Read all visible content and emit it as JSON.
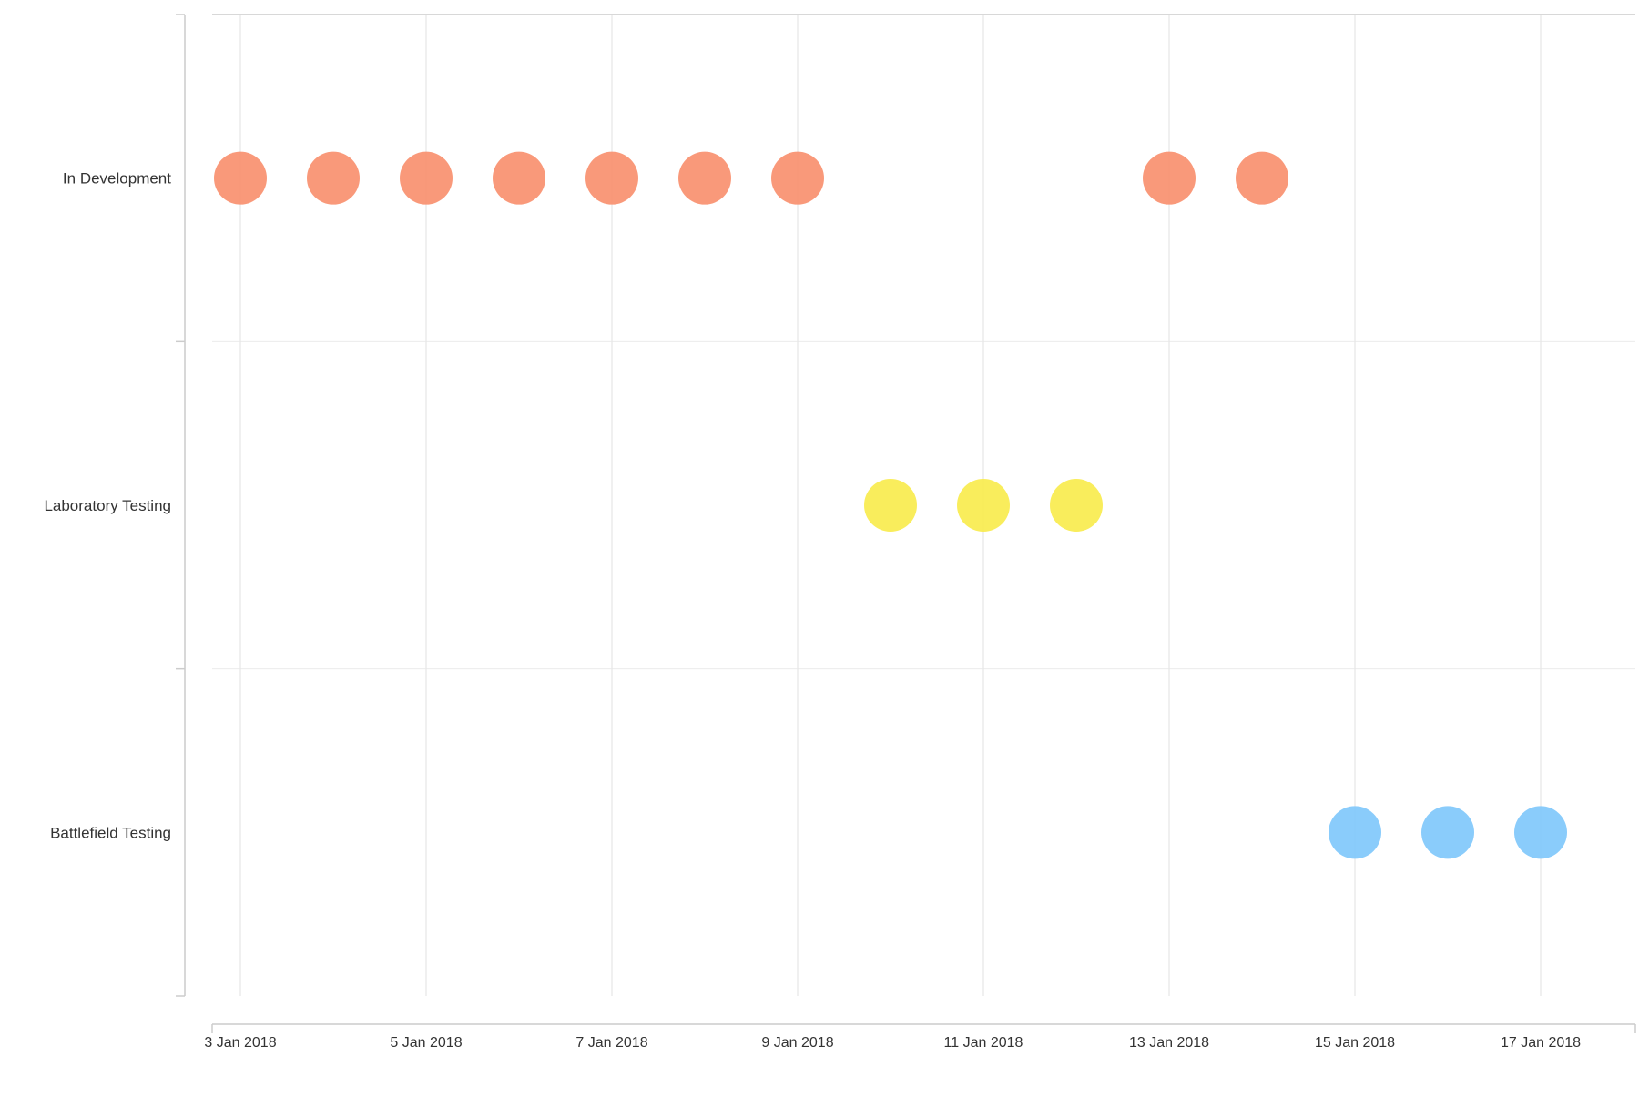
{
  "chart_data": {
    "type": "scatter",
    "title": "",
    "xlabel": "",
    "ylabel": "",
    "x_axis": {
      "type": "date",
      "range": [
        "2018-01-03",
        "2018-01-18"
      ],
      "ticks": [
        {
          "date": "2018-01-03",
          "label": "3 Jan 2018"
        },
        {
          "date": "2018-01-05",
          "label": "5 Jan 2018"
        },
        {
          "date": "2018-01-07",
          "label": "7 Jan 2018"
        },
        {
          "date": "2018-01-09",
          "label": "9 Jan 2018"
        },
        {
          "date": "2018-01-11",
          "label": "11 Jan 2018"
        },
        {
          "date": "2018-01-13",
          "label": "13 Jan 2018"
        },
        {
          "date": "2018-01-15",
          "label": "15 Jan 2018"
        },
        {
          "date": "2018-01-17",
          "label": "17 Jan 2018"
        }
      ],
      "grid": true
    },
    "categories": [
      "In Development",
      "Laboratory Testing",
      "Battlefield Testing"
    ],
    "legend": "none",
    "series": [
      {
        "category": "In Development",
        "color": "#F8906F",
        "x": [
          "2018-01-03",
          "2018-01-04",
          "2018-01-05",
          "2018-01-06",
          "2018-01-07",
          "2018-01-08",
          "2018-01-09",
          "2018-01-13",
          "2018-01-14"
        ]
      },
      {
        "category": "Laboratory Testing",
        "color": "#F8EB4E",
        "x": [
          "2018-01-10",
          "2018-01-11",
          "2018-01-12"
        ]
      },
      {
        "category": "Battlefield Testing",
        "color": "#80C8FB",
        "x": [
          "2018-01-15",
          "2018-01-16",
          "2018-01-17"
        ]
      }
    ]
  }
}
